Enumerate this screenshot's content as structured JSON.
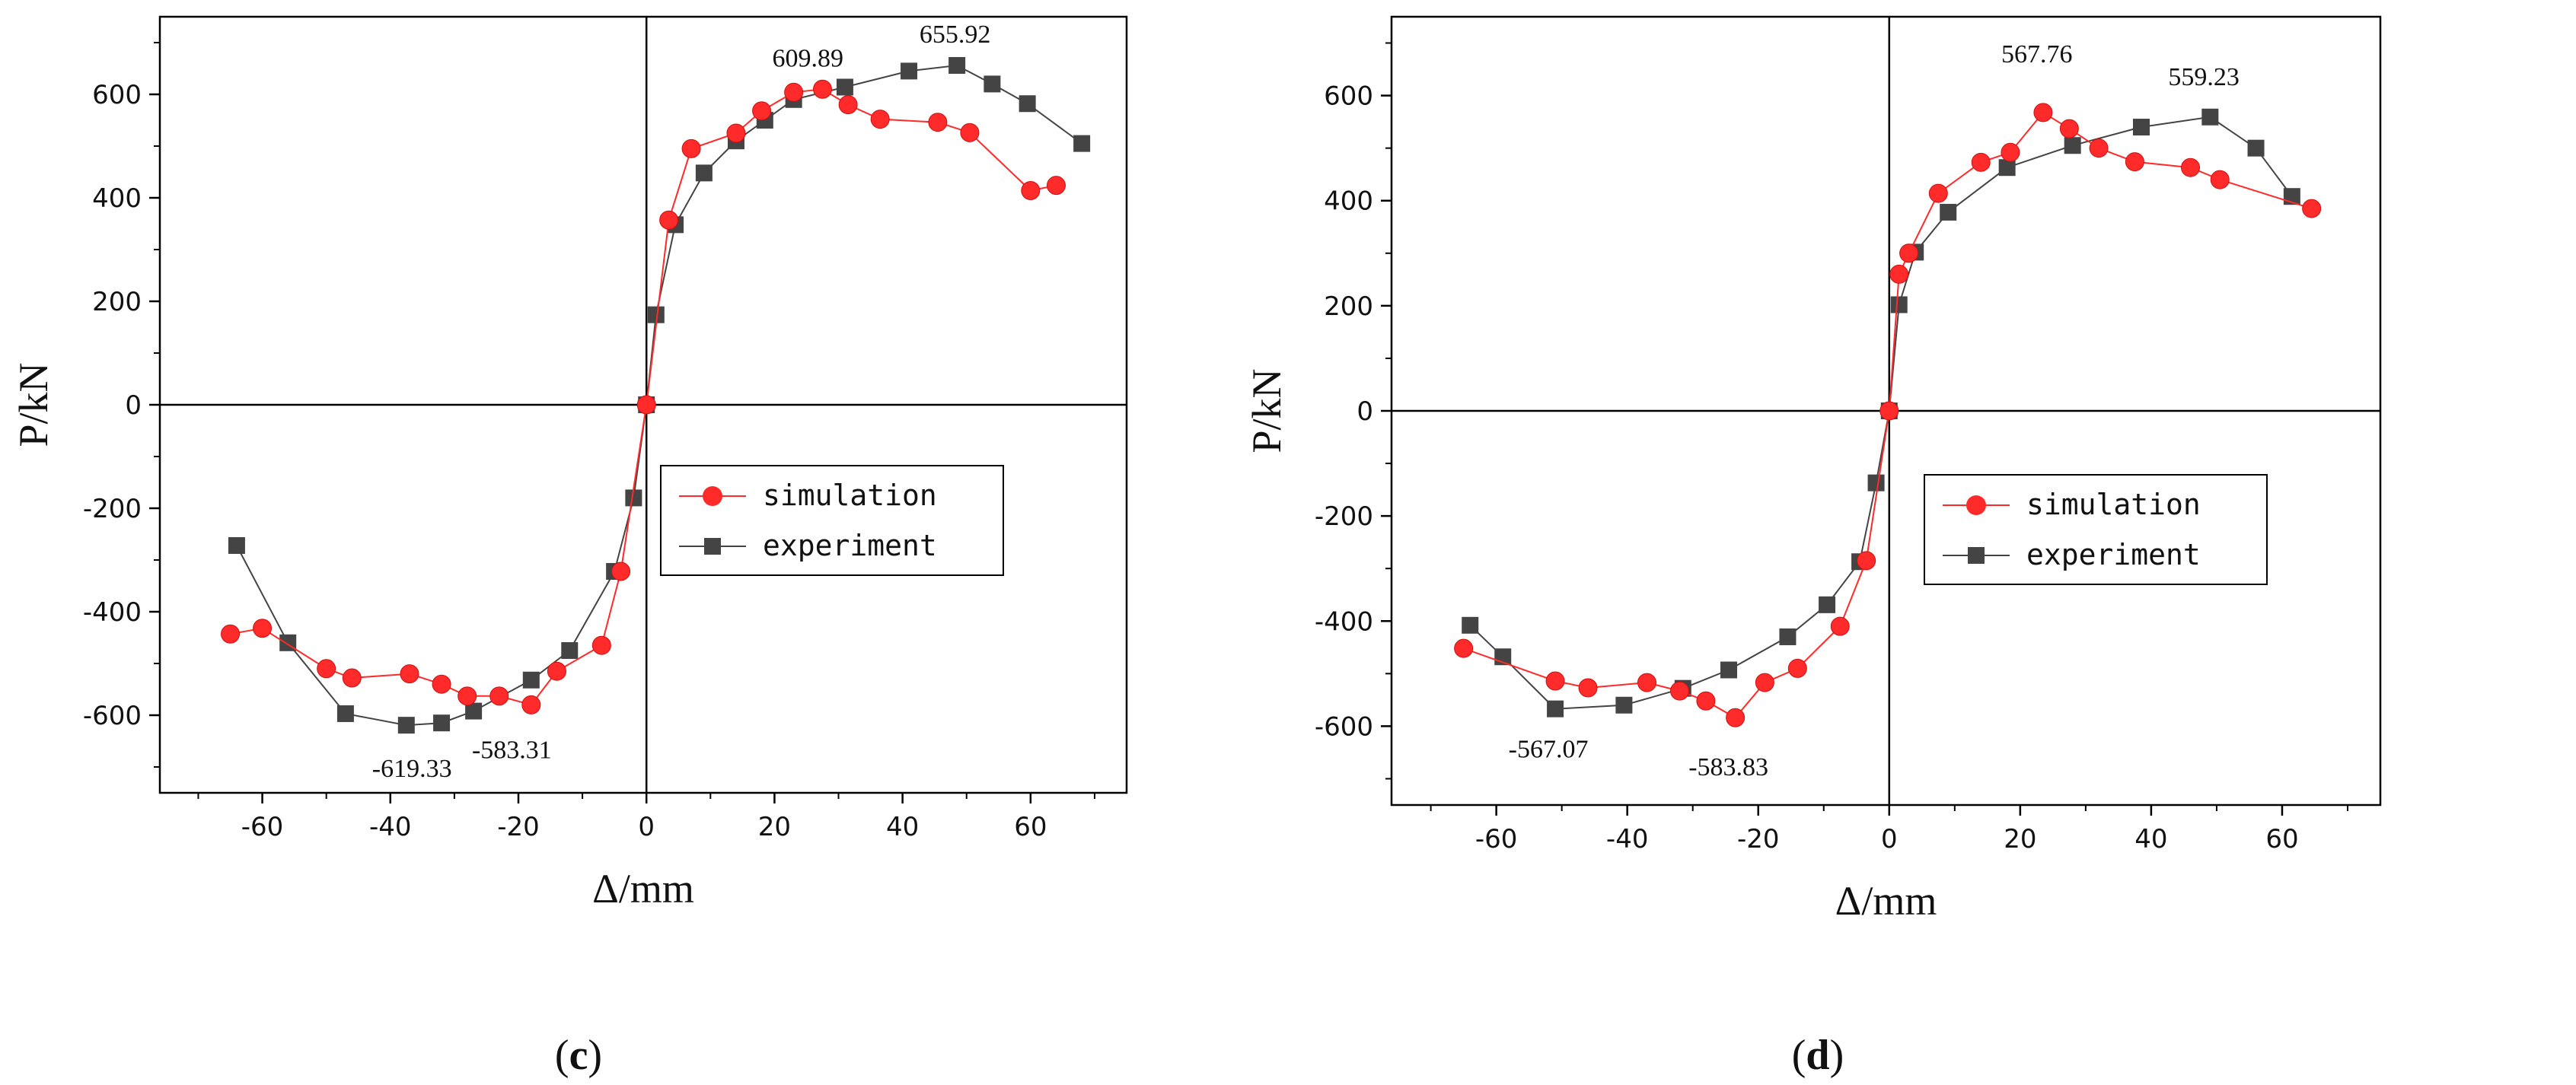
{
  "chart_data": [
    {
      "type": "line",
      "panel_label": "c",
      "xlabel": "Δ/mm",
      "ylabel": "P/kN",
      "xlim": [
        -76,
        75
      ],
      "ylim": [
        -750,
        750
      ],
      "xticks": [
        -60,
        -40,
        -20,
        0,
        20,
        40,
        60
      ],
      "yticks": [
        -600,
        -400,
        -200,
        0,
        200,
        400,
        600
      ],
      "legend_position": "center-right",
      "series": [
        {
          "name": "simulation",
          "color": "#ff2a2a",
          "marker": "circle",
          "points": [
            [
              -65,
              -443
            ],
            [
              -60,
              -432
            ],
            [
              -50,
              -510
            ],
            [
              -46,
              -528
            ],
            [
              -37,
              -520
            ],
            [
              -32,
              -540
            ],
            [
              -28,
              -563
            ],
            [
              -23,
              -563
            ],
            [
              -18,
              -580
            ],
            [
              -14,
              -515
            ],
            [
              -7,
              -465
            ],
            [
              -4,
              -322
            ],
            [
              0,
              0
            ],
            [
              3.5,
              357
            ],
            [
              7,
              495
            ],
            [
              14,
              525
            ],
            [
              18,
              568
            ],
            [
              23,
              604
            ],
            [
              27.5,
              609.89
            ],
            [
              31.5,
              580
            ],
            [
              36.5,
              552
            ],
            [
              45.5,
              546
            ],
            [
              50.5,
              526
            ],
            [
              60,
              414
            ],
            [
              64,
              424
            ]
          ]
        },
        {
          "name": "experiment",
          "color": "#444444",
          "marker": "square",
          "points": [
            [
              -64,
              -272
            ],
            [
              -56,
              -460
            ],
            [
              -47,
              -597
            ],
            [
              -37.5,
              -619.33
            ],
            [
              -32,
              -615
            ],
            [
              -27,
              -592
            ],
            [
              -18,
              -532
            ],
            [
              -12,
              -475
            ],
            [
              -5,
              -322
            ],
            [
              -2,
              -180
            ],
            [
              0,
              0
            ],
            [
              1.5,
              174
            ],
            [
              4.5,
              348
            ],
            [
              9,
              448
            ],
            [
              14,
              510
            ],
            [
              18.5,
              550
            ],
            [
              23,
              590
            ],
            [
              31,
              614
            ],
            [
              41,
              645
            ],
            [
              48.5,
              655.92
            ],
            [
              54,
              620
            ],
            [
              59.5,
              582
            ],
            [
              68,
              505
            ]
          ]
        }
      ],
      "annotations": [
        {
          "text": "609.89",
          "x": 25,
          "y": 609.89
        },
        {
          "text": "655.92",
          "x": 48,
          "y": 655.92
        },
        {
          "text": "-619.33",
          "x": -37.5,
          "y": -619.33
        },
        {
          "text": "-583.31",
          "x": -22.5,
          "y": -583.31
        }
      ]
    },
    {
      "type": "line",
      "panel_label": "d",
      "xlabel": "Δ/mm",
      "ylabel": "P/kN",
      "xlim": [
        -76,
        75
      ],
      "ylim": [
        -750,
        750
      ],
      "xticks": [
        -60,
        -40,
        -20,
        0,
        20,
        40,
        60
      ],
      "yticks": [
        -600,
        -400,
        -200,
        0,
        200,
        400,
        600
      ],
      "legend_position": "center-right",
      "series": [
        {
          "name": "simulation",
          "color": "#ff2a2a",
          "marker": "circle",
          "points": [
            [
              -65,
              -452
            ],
            [
              -51,
              -514
            ],
            [
              -46,
              -527
            ],
            [
              -37,
              -517
            ],
            [
              -32,
              -533
            ],
            [
              -28,
              -552
            ],
            [
              -23.5,
              -583.83
            ],
            [
              -19,
              -517
            ],
            [
              -14,
              -490
            ],
            [
              -7.5,
              -410
            ],
            [
              -3.5,
              -285
            ],
            [
              0,
              0
            ],
            [
              1.5,
              260
            ],
            [
              3,
              300
            ],
            [
              7.5,
              414
            ],
            [
              14,
              473
            ],
            [
              18.5,
              492
            ],
            [
              23.5,
              567.76
            ],
            [
              27.5,
              537
            ],
            [
              32,
              500
            ],
            [
              37.5,
              474
            ],
            [
              46,
              463
            ],
            [
              50.5,
              440
            ],
            [
              64.5,
              385
            ]
          ]
        },
        {
          "name": "experiment",
          "color": "#444444",
          "marker": "square",
          "points": [
            [
              -64,
              -408
            ],
            [
              -59,
              -468
            ],
            [
              -51,
              -567.07
            ],
            [
              -40.5,
              -560
            ],
            [
              -31.5,
              -528
            ],
            [
              -24.5,
              -493
            ],
            [
              -15.5,
              -430
            ],
            [
              -9.5,
              -369
            ],
            [
              -4.5,
              -287
            ],
            [
              -2,
              -137
            ],
            [
              0,
              0
            ],
            [
              1.5,
              202
            ],
            [
              4,
              302
            ],
            [
              9,
              378
            ],
            [
              18,
              463
            ],
            [
              28,
              505
            ],
            [
              38.5,
              540
            ],
            [
              49,
              559.23
            ],
            [
              56,
              500
            ],
            [
              61.5,
              408
            ]
          ]
        }
      ],
      "annotations": [
        {
          "text": "567.76",
          "x": 23.5,
          "y": 567.76
        },
        {
          "text": "559.23",
          "x": 49,
          "y": 559.23
        },
        {
          "text": "-567.07",
          "x": -50,
          "y": -567.07
        },
        {
          "text": "-583.83",
          "x": -22.5,
          "y": -583.83
        }
      ]
    }
  ]
}
